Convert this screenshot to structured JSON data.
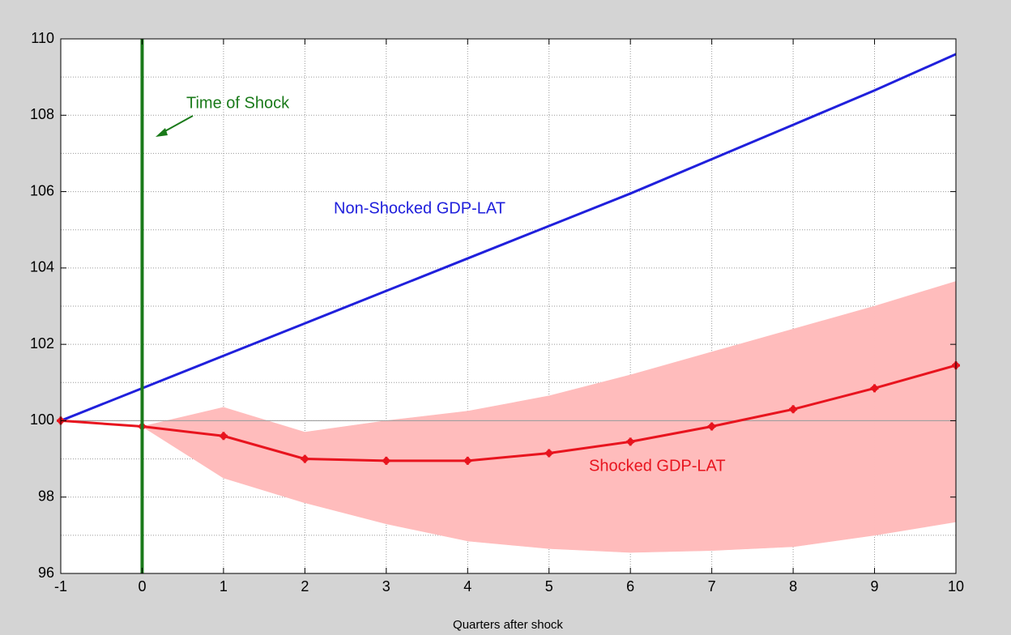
{
  "chart_data": {
    "type": "line",
    "xlabel": "Quarters after shock",
    "x": [
      -1,
      0,
      1,
      2,
      3,
      4,
      5,
      6,
      7,
      8,
      9,
      10
    ],
    "series": [
      {
        "name": "Non-Shocked GDP-LAT",
        "color": "#2020dc",
        "values": [
          100,
          100.85,
          101.7,
          102.55,
          103.4,
          104.25,
          105.1,
          105.95,
          106.85,
          107.75,
          108.65,
          109.6
        ]
      },
      {
        "name": "Shocked GDP-LAT",
        "color": "#e8141e",
        "values": [
          100,
          99.85,
          99.6,
          99.0,
          98.95,
          98.95,
          99.15,
          99.45,
          99.85,
          100.3,
          100.85,
          101.45
        ],
        "markers": true
      }
    ],
    "band": {
      "color": "#ffbcbc",
      "upper": [
        100,
        99.85,
        100.35,
        99.7,
        100.0,
        100.25,
        100.65,
        101.2,
        101.8,
        102.4,
        103.0,
        103.65
      ],
      "lower": [
        100,
        99.85,
        98.5,
        97.85,
        97.3,
        96.85,
        96.65,
        96.55,
        96.6,
        96.7,
        97.0,
        97.35
      ]
    },
    "hline": {
      "value": 100,
      "color": "#a0a0a0"
    },
    "vline": {
      "value": 0,
      "color": "#1a7a1a",
      "label": "Time of Shock"
    },
    "xlim": [
      -1,
      10
    ],
    "xticks": [
      -1,
      0,
      1,
      2,
      3,
      4,
      5,
      6,
      7,
      8,
      9,
      10
    ],
    "ylim": [
      96,
      110
    ],
    "yticks": [
      96,
      98,
      100,
      102,
      104,
      106,
      108,
      110
    ],
    "yminorgrid": [
      97,
      99,
      101,
      103,
      105,
      107,
      109
    ],
    "grid": true
  }
}
